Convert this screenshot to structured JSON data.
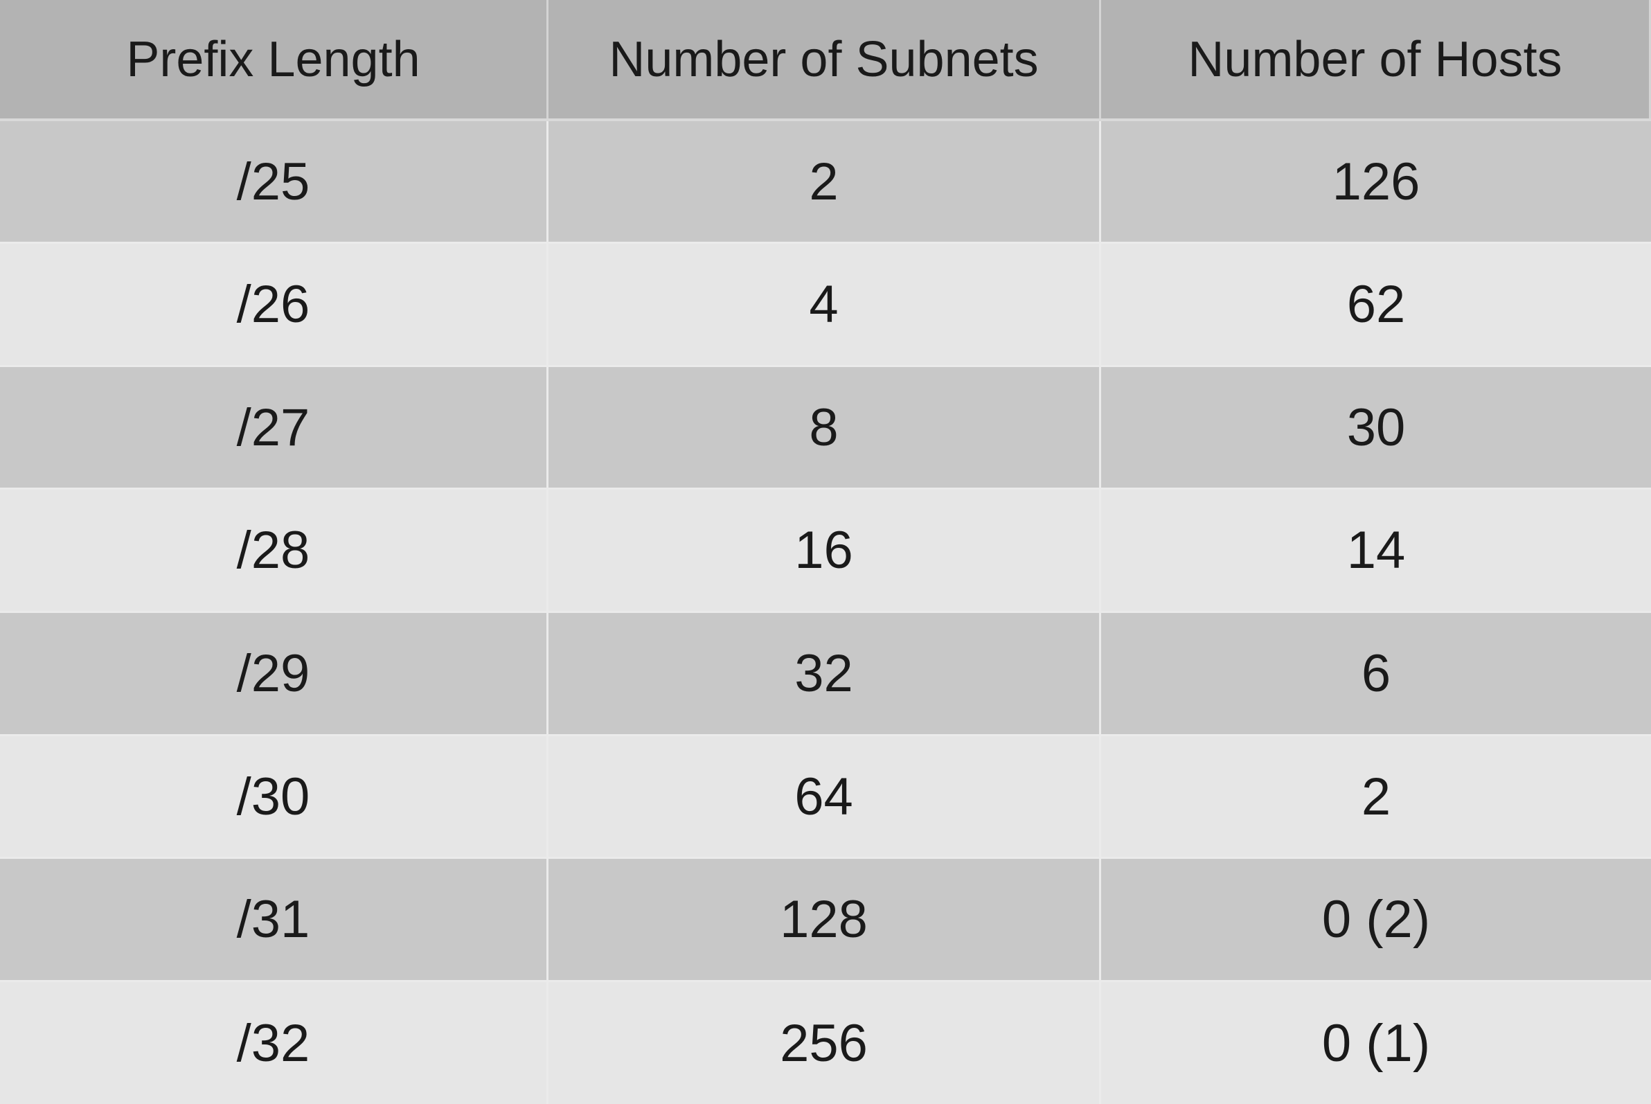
{
  "table": {
    "headers": [
      "Prefix Length",
      "Number of Subnets",
      "Number of Hosts"
    ],
    "rows": [
      [
        "/25",
        "2",
        "126"
      ],
      [
        "/26",
        "4",
        "62"
      ],
      [
        "/27",
        "8",
        "30"
      ],
      [
        "/28",
        "16",
        "14"
      ],
      [
        "/29",
        "32",
        "6"
      ],
      [
        "/30",
        "64",
        "2"
      ],
      [
        "/31",
        "128",
        "0 (2)"
      ],
      [
        "/32",
        "256",
        "0 (1)"
      ]
    ]
  },
  "colors": {
    "header_bg": "#b3b3b3",
    "row_dark_bg": "#c8c8c8",
    "row_light_bg": "#e6e6e6",
    "divider": "#ebebeb"
  }
}
